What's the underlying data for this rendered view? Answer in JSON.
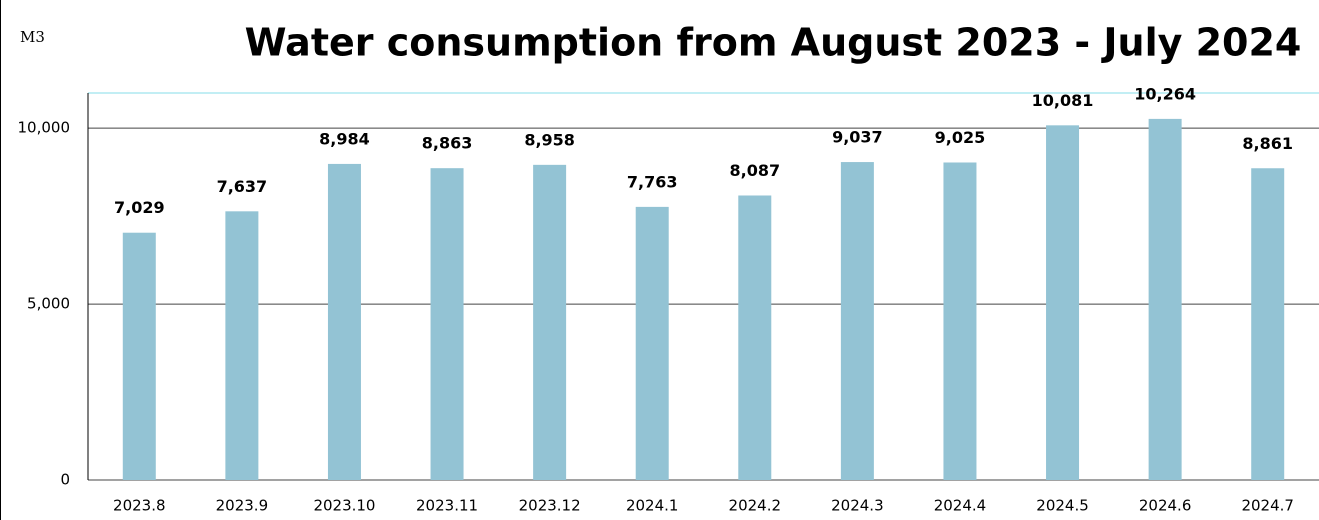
{
  "chart_data": {
    "type": "bar",
    "title": "Water consumption from  August 2023 - July 2024",
    "y_unit": "M3",
    "categories": [
      "2023.8",
      "2023.9",
      "2023.10",
      "2023.11",
      "2023.12",
      "2024.1",
      "2024.2",
      "2024.3",
      "2024.4",
      "2024.5",
      "2024.6",
      "2024.7"
    ],
    "values": [
      7029,
      7637,
      8984,
      8863,
      8958,
      7763,
      8087,
      9037,
      9025,
      10081,
      10264,
      8861
    ],
    "value_labels": [
      "7,029",
      "7,637",
      "8,984",
      "8,863",
      "8,958",
      "7,763",
      "8,087",
      "9,037",
      "9,025",
      "10,081",
      "10,264",
      "8,861"
    ],
    "color": "#93c3d4",
    "ylim": [
      0,
      11000
    ],
    "yticks": [
      0,
      {
        "value": 5000,
        "label": "5,000"
      },
      {
        "value": 10000,
        "label": "10,000"
      }
    ],
    "grid": true
  }
}
